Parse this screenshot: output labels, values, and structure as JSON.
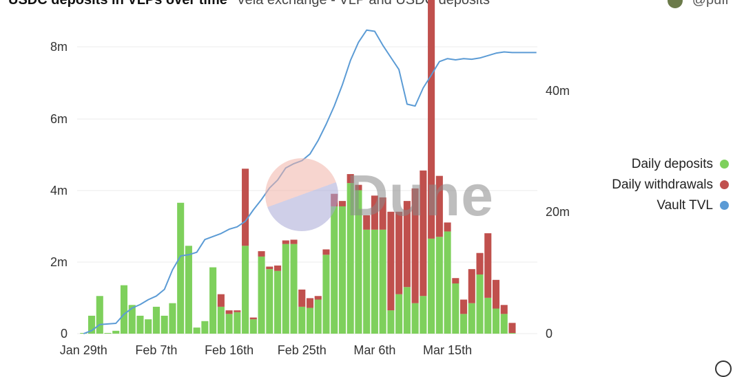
{
  "header": {
    "title": "USDC deposits in VLPs over time",
    "subtitle": "Vela exchange - VLP and USDC deposits",
    "author": "@puff"
  },
  "colors": {
    "deposits": "#7ed05c",
    "withdrawals": "#c0504d",
    "tvl": "#5b9bd5",
    "grid": "#ebebeb"
  },
  "watermark": "Dune",
  "chart_data": {
    "type": "bar",
    "title": "",
    "xlabel": "",
    "ylabel": "",
    "ylim": [
      0,
      8400000
    ],
    "y2lim": [
      0,
      50000000
    ],
    "y_ticks": [
      "0",
      "2m",
      "4m",
      "6m",
      "8m"
    ],
    "y2_ticks": [
      "0",
      "20m",
      "40m"
    ],
    "x_tick_labels": [
      "Jan 29th",
      "Feb 7th",
      "Feb 16th",
      "Feb 25th",
      "Mar 6th",
      "Mar 15th"
    ],
    "x_tick_dates": [
      "2023-01-29",
      "2023-02-07",
      "2023-02-16",
      "2023-02-25",
      "2023-03-06",
      "2023-03-15"
    ],
    "categories": [
      "2023-01-29",
      "2023-01-30",
      "2023-01-31",
      "2023-02-01",
      "2023-02-02",
      "2023-02-03",
      "2023-02-04",
      "2023-02-05",
      "2023-02-06",
      "2023-02-07",
      "2023-02-08",
      "2023-02-09",
      "2023-02-10",
      "2023-02-11",
      "2023-02-12",
      "2023-02-13",
      "2023-02-14",
      "2023-02-15",
      "2023-02-16",
      "2023-02-17",
      "2023-02-18",
      "2023-02-19",
      "2023-02-20",
      "2023-02-21",
      "2023-02-22",
      "2023-02-23",
      "2023-02-24",
      "2023-02-25",
      "2023-02-26",
      "2023-02-27",
      "2023-02-28",
      "2023-03-01",
      "2023-03-02",
      "2023-03-03",
      "2023-03-04",
      "2023-03-05",
      "2023-03-06",
      "2023-03-07",
      "2023-03-08",
      "2023-03-09",
      "2023-03-10",
      "2023-03-11",
      "2023-03-12",
      "2023-03-13",
      "2023-03-14",
      "2023-03-15",
      "2023-03-16",
      "2023-03-17",
      "2023-03-18",
      "2023-03-19",
      "2023-03-20",
      "2023-03-21",
      "2023-03-22",
      "2023-03-23",
      "2023-03-24",
      "2023-03-25",
      "2023-03-26"
    ],
    "series": [
      {
        "name": "Daily deposits",
        "values": [
          0.02,
          0.5,
          1.05,
          0.02,
          0.08,
          1.35,
          0.8,
          0.5,
          0.4,
          0.75,
          0.5,
          0.85,
          3.65,
          2.45,
          0.17,
          0.35,
          1.85,
          0.75,
          0.55,
          0.6,
          2.45,
          0.4,
          2.15,
          1.8,
          1.75,
          2.5,
          2.5,
          0.75,
          0.72,
          0.95,
          2.2,
          3.55,
          3.55,
          4.2,
          4.0,
          2.9,
          2.9,
          2.9,
          0.65,
          1.1,
          1.3,
          0.85,
          1.05,
          2.65,
          2.7,
          2.85,
          1.4,
          0.55,
          0.85,
          1.65,
          1.0,
          0.7,
          0.55,
          0.02,
          0,
          0,
          0
        ],
        "color": "#7ed05c",
        "stacked": true
      },
      {
        "name": "Daily withdrawals",
        "values": [
          0,
          0,
          0,
          0,
          0,
          0,
          0,
          0,
          0,
          0,
          0,
          0,
          0,
          0,
          0,
          0,
          0,
          0.35,
          0.1,
          0.05,
          2.15,
          0.05,
          0.15,
          0.07,
          0.15,
          0.1,
          0.12,
          0.48,
          0.27,
          0.1,
          0.15,
          0.35,
          0.15,
          0.25,
          0.15,
          0.4,
          0.95,
          0.9,
          2.75,
          2.3,
          2.4,
          3.2,
          3.5,
          7.6,
          1.7,
          0.25,
          0.15,
          0.4,
          0.95,
          0.6,
          1.8,
          0.8,
          0.25,
          0.28,
          0,
          0,
          0
        ],
        "color": "#c0504d",
        "stacked": true
      },
      {
        "name": "Vault TVL",
        "axis": "right",
        "values": [
          0,
          0.5,
          1.5,
          1.6,
          1.7,
          3.2,
          4.2,
          4.8,
          5.6,
          6.2,
          7.3,
          10.5,
          12.8,
          13.0,
          13.4,
          15.5,
          16.0,
          16.5,
          17.2,
          17.6,
          18.5,
          20.4,
          22.1,
          24.0,
          25.3,
          27.3,
          28.0,
          28.5,
          29.6,
          31.8,
          34.5,
          37.5,
          41.0,
          45.0,
          48.0,
          50.0,
          49.8,
          47.5,
          45.5,
          43.5,
          37.8,
          37.5,
          40.5,
          42.6,
          44.8,
          45.3,
          45.1,
          45.3,
          45.2,
          45.4,
          45.8,
          46.2,
          46.4,
          46.3,
          46.3,
          46.3,
          46.3
        ],
        "color": "#5b9bd5",
        "unit": "m"
      }
    ],
    "legend_position": "right",
    "grid": true
  }
}
